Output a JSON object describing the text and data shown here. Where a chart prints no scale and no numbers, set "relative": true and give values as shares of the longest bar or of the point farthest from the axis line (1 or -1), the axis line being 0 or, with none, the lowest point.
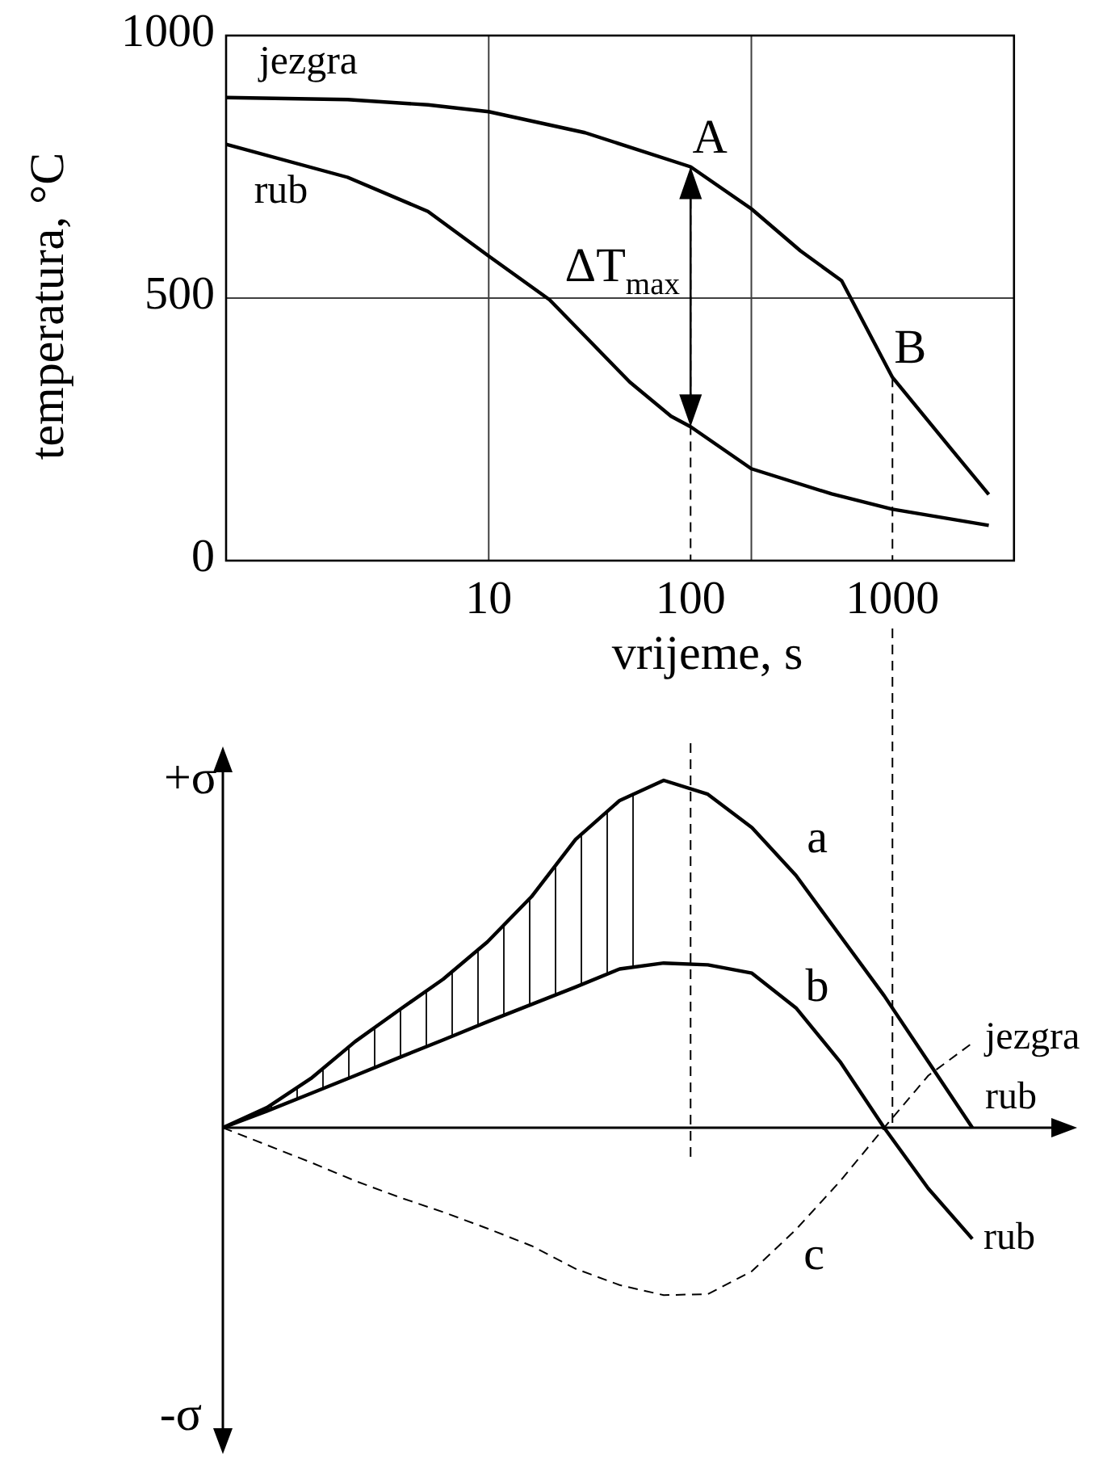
{
  "chart_data": [
    {
      "type": "line",
      "xlabel": "vrijeme, s",
      "ylabel": "temperatura, °C",
      "log": "x",
      "xlim": [
        0.5,
        4000
      ],
      "ylim": [
        0,
        1000
      ],
      "xticks": [
        10,
        100,
        1000
      ],
      "yticks": [
        0,
        500,
        1000
      ],
      "grid": "y",
      "series": [
        {
          "name": "jezgra",
          "color": "#000000",
          "x": [
            0.5,
            2,
            5,
            10,
            30,
            100,
            200,
            350,
            560,
            1000,
            1970,
            3000
          ],
          "values": [
            882,
            878,
            868,
            855,
            815,
            750,
            670,
            590,
            533,
            349,
            211,
            126
          ]
        },
        {
          "name": "rub",
          "color": "#000000",
          "x": [
            0.5,
            2,
            5,
            10,
            20,
            50,
            80,
            100,
            200,
            500,
            1000,
            3000
          ],
          "values": [
            793,
            730,
            665,
            580,
            497,
            340,
            275,
            255,
            175,
            127,
            98,
            67
          ]
        }
      ],
      "ref_lines": [
        {
          "axis": "x",
          "value": 10,
          "color": "#404040"
        },
        {
          "axis": "x",
          "value": 200,
          "color": "#404040"
        },
        {
          "axis": "x",
          "value": 100,
          "line_style": "dashed"
        },
        {
          "axis": "x",
          "value": 1000,
          "line_style": "dashed"
        }
      ],
      "annotations": [
        {
          "text": "A",
          "x": 100,
          "y": 750
        },
        {
          "text": "B",
          "x": 1000,
          "y": 349
        },
        "ΔT$_{max}$"
      ]
    },
    {
      "type": "line",
      "relative": true,
      "categories": [
        null,
        null,
        null,
        null,
        null,
        null,
        null,
        null,
        null,
        null,
        null,
        null,
        null,
        null,
        null,
        null,
        null,
        null
      ],
      "series": [
        {
          "name": "a",
          "color": "#000000",
          "values": [
            0,
            0.058,
            0.142,
            0.248,
            0.339,
            0.428,
            0.535,
            0.665,
            0.83,
            0.942,
            1,
            0.96,
            0.864,
            0.726,
            0.553,
            0.38,
            0.19,
            0
          ]
        },
        {
          "name": "b",
          "color": "#000000",
          "values": [
            0,
            0.048,
            0.099,
            0.15,
            0.202,
            0.253,
            0.305,
            0.355,
            0.405,
            0.457,
            0.474,
            0.469,
            0.445,
            0.345,
            0.19,
            0,
            -0.175,
            -0.32
          ]
        },
        {
          "name": "c",
          "color": "#000000",
          "line_style": "dashed",
          "values": [
            0,
            -0.05,
            -0.1,
            -0.153,
            -0.2,
            -0.243,
            -0.29,
            -0.34,
            -0.406,
            -0.453,
            -0.482,
            -0.479,
            -0.413,
            -0.293,
            -0.154,
            0,
            0.15,
            0.244
          ]
        }
      ],
      "annotations": [
        "+σ",
        "-σ",
        "rub",
        "rub",
        "jezgra"
      ]
    }
  ]
}
